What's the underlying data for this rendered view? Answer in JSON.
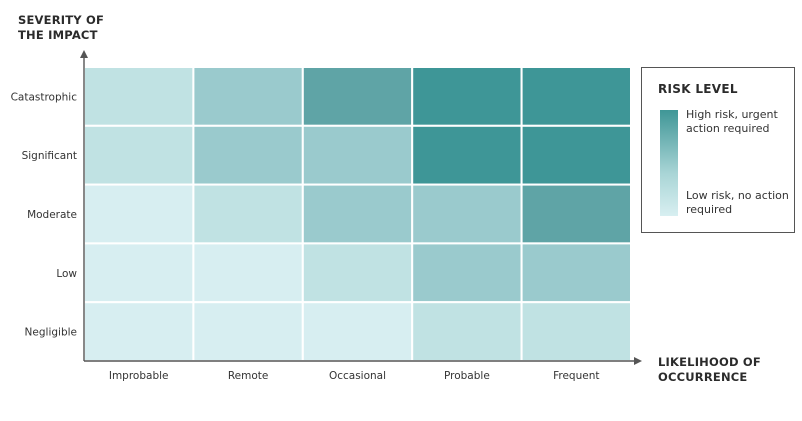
{
  "chart_data": {
    "type": "heatmap",
    "ylabel": "SEVERITY OF\nTHE IMPACT",
    "xlabel": "LIKELIHOOD OF\nOCCURRENCE",
    "y_categories": [
      "Catastrophic",
      "Significant",
      "Moderate",
      "Low",
      "Negligible"
    ],
    "x_categories": [
      "Improbable",
      "Remote",
      "Occasional",
      "Probable",
      "Frequent"
    ],
    "values": [
      [
        2,
        3,
        4,
        5,
        5
      ],
      [
        2,
        3,
        3,
        5,
        5
      ],
      [
        1,
        2,
        3,
        3,
        4
      ],
      [
        1,
        1,
        2,
        3,
        3
      ],
      [
        1,
        1,
        1,
        2,
        2
      ]
    ],
    "scale_colors": {
      "1": "#d7eef1",
      "2": "#c0e2e3",
      "3": "#9acacd",
      "4": "#5fa4a6",
      "5": "#3e9697"
    },
    "legend": {
      "title": "RISK LEVEL",
      "high_label": "High risk, urgent action required",
      "low_label": "Low risk, no action required",
      "placement": "right"
    }
  }
}
